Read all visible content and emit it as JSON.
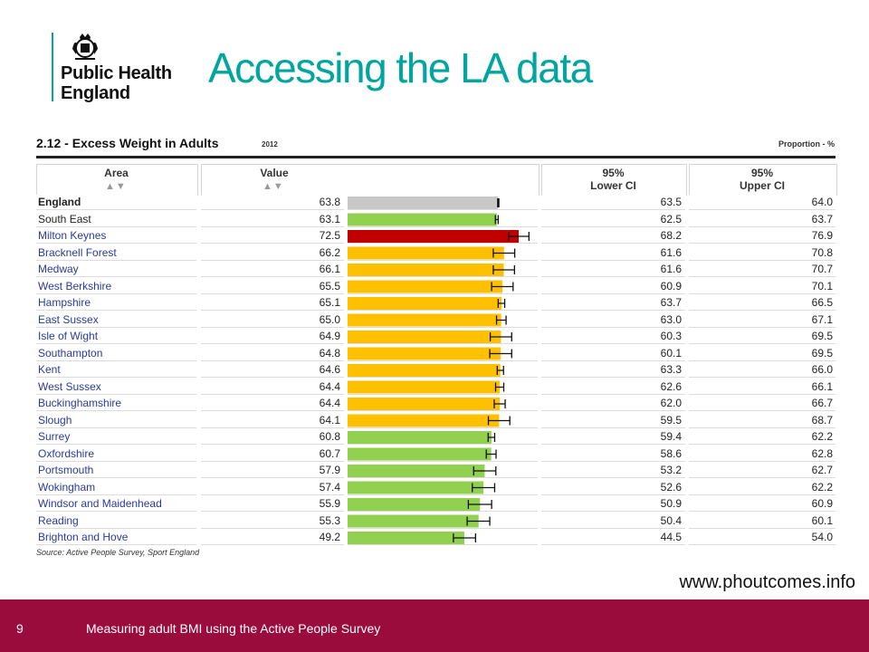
{
  "header": {
    "org_name_line1": "Public Health",
    "org_name_line2": "England",
    "title": "Accessing the LA data"
  },
  "table": {
    "title": "2.12 - Excess Weight in Adults",
    "year": "2012",
    "unit": "Proportion - %",
    "col_area": "Area",
    "col_value": "Value",
    "col_lower_line1": "95%",
    "col_lower_line2": "Lower CI",
    "col_upper_line1": "95%",
    "col_upper_line2": "Upper CI",
    "sort_glyph": "▲▼",
    "source": "Source: Active People Survey, Sport England"
  },
  "colors": {
    "england": "#c8c8c8",
    "similar": "#92d050",
    "worse": "#c00000",
    "not_compared": "#ffc000"
  },
  "chart_data": {
    "type": "bar",
    "title": "2.12 - Excess Weight in Adults",
    "subtitle": "2012",
    "ylabel": "Proportion - %",
    "categories": [
      "England",
      "South East",
      "Milton Keynes",
      "Bracknell Forest",
      "Medway",
      "West Berkshire",
      "Hampshire",
      "East Sussex",
      "Isle of Wight",
      "Southampton",
      "Kent",
      "West Sussex",
      "Buckinghamshire",
      "Slough",
      "Surrey",
      "Oxfordshire",
      "Portsmouth",
      "Wokingham",
      "Windsor and Maidenhead",
      "Reading",
      "Brighton and Hove"
    ],
    "series": [
      {
        "name": "Value",
        "values": [
          63.8,
          63.1,
          72.5,
          66.2,
          66.1,
          65.5,
          65.1,
          65.0,
          64.9,
          64.8,
          64.6,
          64.4,
          64.4,
          64.1,
          60.8,
          60.7,
          57.9,
          57.4,
          55.9,
          55.3,
          49.2
        ]
      },
      {
        "name": "95% Lower CI",
        "values": [
          63.5,
          62.5,
          68.2,
          61.6,
          61.6,
          60.9,
          63.7,
          63.0,
          60.3,
          60.1,
          63.3,
          62.6,
          62.0,
          59.5,
          59.4,
          58.6,
          53.2,
          52.6,
          50.9,
          50.4,
          44.5
        ]
      },
      {
        "name": "95% Upper CI",
        "values": [
          64.0,
          63.7,
          76.9,
          70.8,
          70.7,
          70.1,
          66.5,
          67.1,
          69.5,
          69.5,
          66.0,
          66.1,
          66.7,
          68.7,
          62.2,
          62.8,
          62.7,
          62.2,
          60.9,
          60.1,
          54.0
        ]
      }
    ],
    "bar_colors": [
      "england",
      "similar",
      "worse",
      "not_compared",
      "not_compared",
      "not_compared",
      "not_compared",
      "not_compared",
      "not_compared",
      "not_compared",
      "not_compared",
      "not_compared",
      "not_compared",
      "not_compared",
      "similar",
      "similar",
      "similar",
      "similar",
      "similar",
      "similar",
      "similar"
    ],
    "xlim": [
      0,
      80
    ],
    "legend": "none"
  },
  "url": "www.phoutcomes.info",
  "footer": {
    "page_number": "9",
    "text": "Measuring adult BMI using the Active People Survey"
  }
}
